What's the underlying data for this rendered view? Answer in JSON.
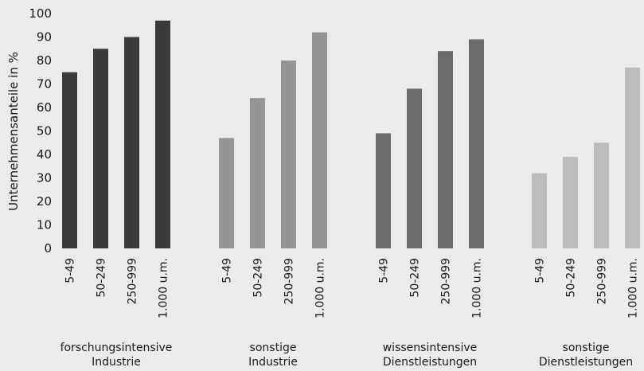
{
  "chart_data": {
    "type": "bar",
    "ylabel": "Unternehmensanteile in %",
    "ylim": [
      0,
      100
    ],
    "yticks": [
      0,
      10,
      20,
      30,
      40,
      50,
      60,
      70,
      80,
      90,
      100
    ],
    "grid": false,
    "categories": [
      "5-49",
      "50-249",
      "250-999",
      "1.000 u.m."
    ],
    "groups": [
      {
        "label_lines": [
          "forschungsintensive",
          "Industrie"
        ],
        "color": "#3a3a3a",
        "values": [
          75,
          85,
          90,
          97
        ]
      },
      {
        "label_lines": [
          "sonstige",
          "Industrie"
        ],
        "color": "#959595",
        "values": [
          47,
          64,
          80,
          92
        ]
      },
      {
        "label_lines": [
          "wissensintensive",
          "Dienstleistungen"
        ],
        "color": "#6b6b6b",
        "values": [
          49,
          68,
          84,
          89
        ]
      },
      {
        "label_lines": [
          "sonstige",
          "Dienstleistungen"
        ],
        "color": "#bcbcbc",
        "values": [
          32,
          39,
          45,
          77
        ]
      }
    ]
  }
}
